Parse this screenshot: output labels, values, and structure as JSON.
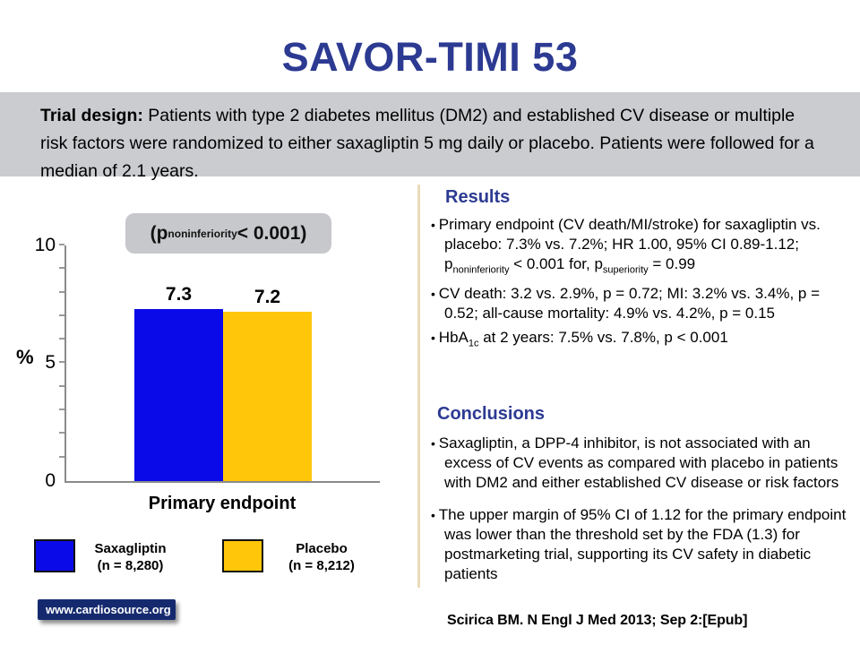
{
  "title": "SAVOR-TIMI 53",
  "trial_design": {
    "label": "Trial design:",
    "text": " Patients with type 2 diabetes mellitus (DM2) and established CV disease or multiple risk factors were randomized to either saxagliptin 5 mg daily or placebo. Patients were followed for a median of 2.1 years."
  },
  "chart_data": {
    "type": "bar",
    "categories": [
      "Primary endpoint"
    ],
    "series": [
      {
        "name": "Saxagliptin (n = 8,280)",
        "values": [
          7.3
        ],
        "color": "#0a0ae8"
      },
      {
        "name": "Placebo (n = 8,212)",
        "values": [
          7.2
        ],
        "color": "#ffc60a"
      }
    ],
    "bar_labels": [
      "7.3",
      "7.2"
    ],
    "ylabel": "%",
    "xlabel": "Primary endpoint",
    "ylim": [
      0,
      10
    ],
    "yticks": [
      0,
      5,
      10
    ],
    "grid": false,
    "legend_position": "below",
    "annotation": {
      "prefix": "(p",
      "sub": "noninferiority",
      "suffix": " < 0.001)"
    }
  },
  "legend": [
    {
      "name": "Saxagliptin",
      "n": "(n = 8,280)",
      "color": "#0a0ae8"
    },
    {
      "name": "Placebo",
      "n": "(n = 8,212)",
      "color": "#ffc60a"
    }
  ],
  "badge": "www.cardiosource.org",
  "results": {
    "heading": "Results",
    "bullets": [
      [
        {
          "t": "Primary endpoint (CV death/MI/stroke) for saxagliptin vs. placebo: 7.3% vs. 7.2%; HR 1.00, 95% CI 0.89-1.12; p"
        },
        {
          "t": "noninferiority",
          "sub": true
        },
        {
          "t": " < 0.001 for, p"
        },
        {
          "t": "superiority",
          "sub": true
        },
        {
          "t": " = 0.99"
        }
      ],
      [
        {
          "t": "CV death: 3.2 vs. 2.9%, p = 0.72; MI: 3.2% vs. 3.4%, p = 0.52; all-cause mortality: 4.9% vs. 4.2%, p = 0.15"
        }
      ],
      [
        {
          "t": "HbA"
        },
        {
          "t": "1c",
          "sub": true
        },
        {
          "t": " at 2 years: 7.5% vs. 7.8%, p < 0.001"
        }
      ]
    ]
  },
  "conclusions": {
    "heading": "Conclusions",
    "bullets": [
      [
        {
          "t": "Saxagliptin, a DPP-4 inhibitor, is not associated with an excess of CV events as compared with placebo in patients with DM2 and either established CV disease or risk factors"
        }
      ],
      [
        {
          "t": "The upper margin of 95% CI of 1.12 for the primary endpoint was lower than the threshold set by the FDA (1.3) for postmarketing trial, supporting its CV safety in diabetic patients"
        }
      ]
    ]
  },
  "citation": "Scirica BM. N Engl J Med 2013; Sep 2:[Epub]",
  "colors": {
    "heading_blue": "#2c3a92",
    "band_gray": "#cbcccf",
    "pbox_gray": "#c7c8cb",
    "bar_blue": "#0a0ae8",
    "bar_gold": "#ffc60a",
    "badge_navy": "#152a6e",
    "divider_tan": "#eadcba",
    "axis_gray": "#8a8a8a"
  }
}
